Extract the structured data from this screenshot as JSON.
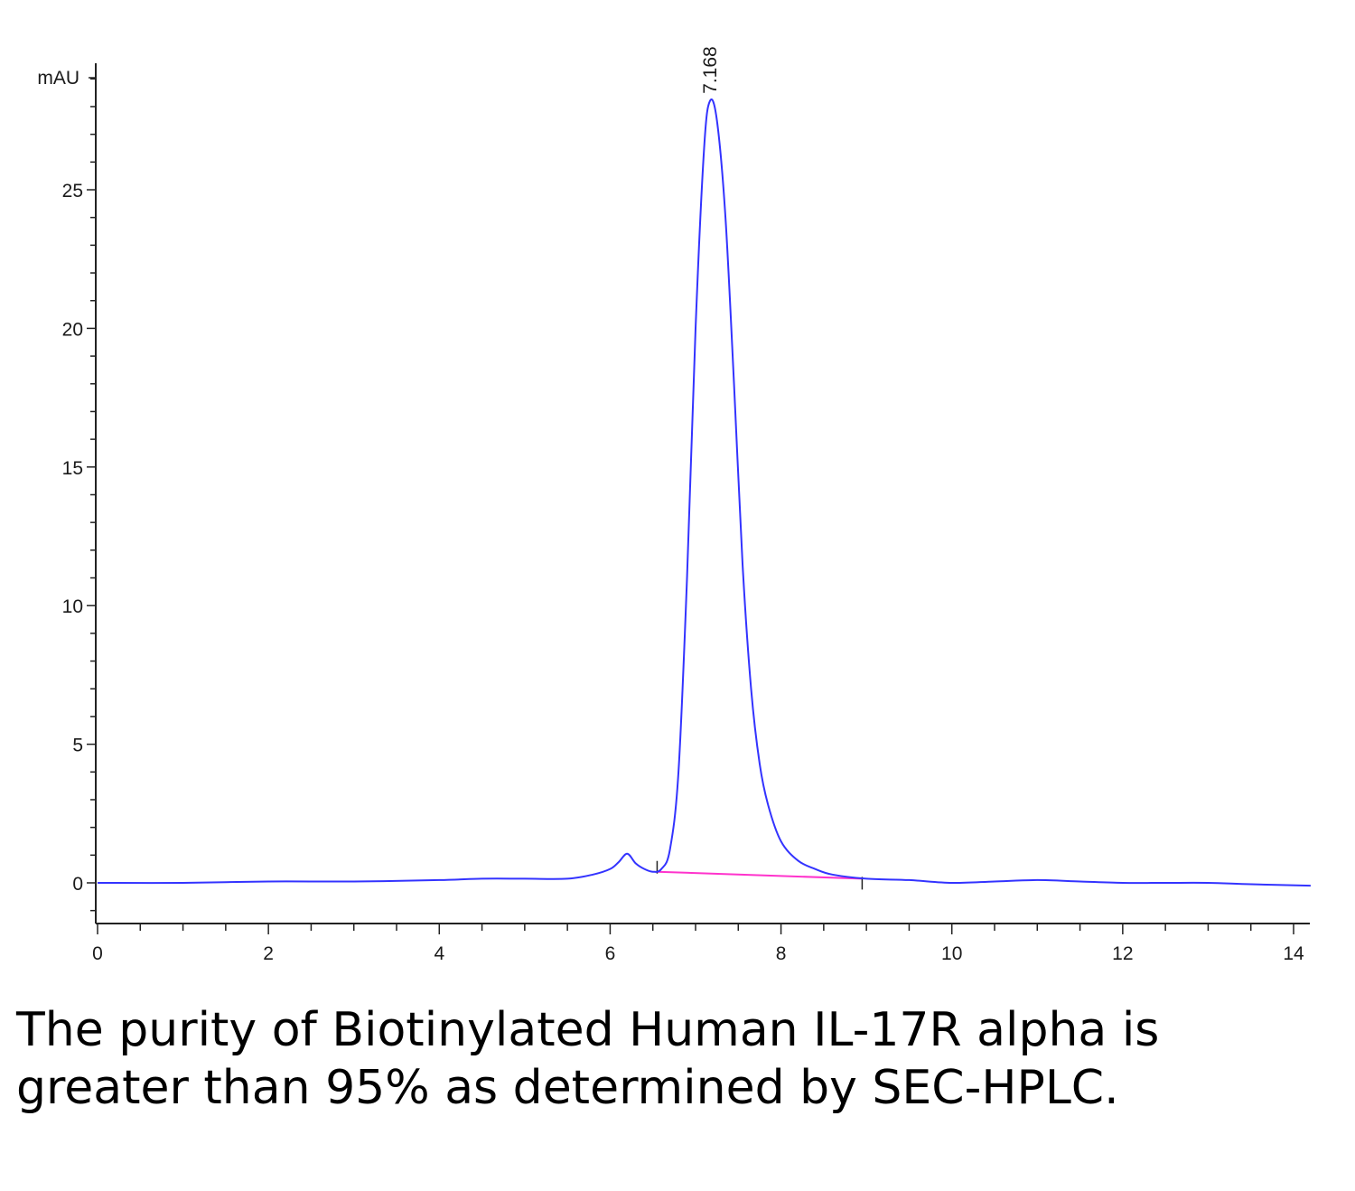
{
  "chart_data": {
    "type": "line",
    "ylabel": "mAU",
    "xlim": [
      0,
      14.2
    ],
    "ylim": [
      -1.5,
      29.5
    ],
    "x_ticks": [
      0,
      2,
      4,
      6,
      8,
      10,
      12,
      14
    ],
    "y_ticks": [
      0,
      5,
      10,
      15,
      20,
      25
    ],
    "grid": false,
    "legend": "none",
    "series": [
      {
        "color": "#3333ff",
        "x": [
          0,
          1,
          2,
          3,
          4,
          4.5,
          5,
          5.5,
          5.8,
          6.0,
          6.1,
          6.2,
          6.3,
          6.4,
          6.5,
          6.6,
          6.7,
          6.8,
          6.9,
          7.0,
          7.1,
          7.168,
          7.25,
          7.35,
          7.45,
          7.55,
          7.65,
          7.75,
          7.85,
          8.0,
          8.2,
          8.4,
          8.6,
          9.0,
          9.5,
          10.0,
          10.5,
          11.0,
          11.5,
          12.0,
          12.5,
          13.0,
          13.5,
          14.2
        ],
        "y": [
          0.0,
          0.0,
          0.05,
          0.05,
          0.1,
          0.15,
          0.15,
          0.15,
          0.3,
          0.5,
          0.75,
          1.05,
          0.7,
          0.5,
          0.4,
          0.5,
          1.2,
          4.0,
          11.0,
          20.0,
          26.5,
          28.2,
          27.5,
          24.0,
          18.0,
          11.5,
          7.0,
          4.3,
          2.8,
          1.5,
          0.8,
          0.5,
          0.3,
          0.15,
          0.1,
          0.0,
          0.05,
          0.1,
          0.05,
          0.0,
          0.0,
          0.0,
          -0.05,
          -0.1
        ]
      }
    ],
    "baseline": {
      "color": "#ff33cc",
      "x": [
        6.55,
        8.95
      ],
      "y": [
        0.4,
        0.15
      ]
    },
    "annotations": [
      {
        "text": "7.168",
        "x": 7.168,
        "y": 28.2
      }
    ]
  },
  "caption": "The purity of Biotinylated Human IL-17R alpha is greater than 95% as determined by SEC-HPLC."
}
